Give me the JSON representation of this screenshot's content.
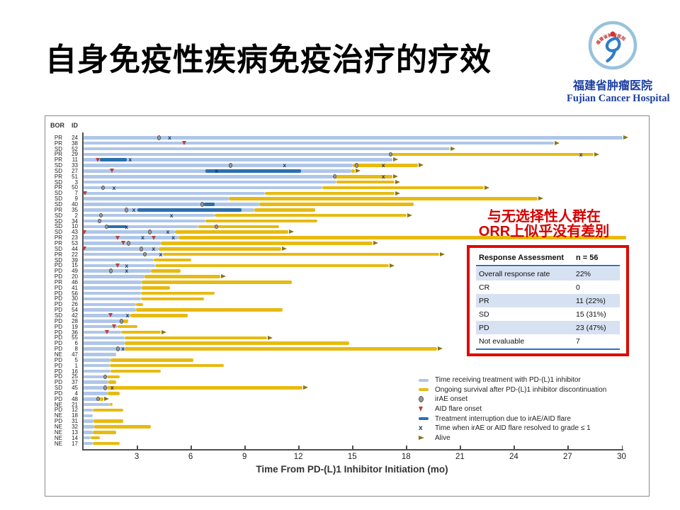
{
  "slide": {
    "title": "自身免疫性疾病免疫治疗的疗效"
  },
  "logo": {
    "cn": "福建省肿瘤医院",
    "en": "Fujian Cancer Hospital",
    "seal_text": "福建省肿瘤医院"
  },
  "annotation": {
    "line1": "与无选择性人群在",
    "line2": "ORR上似乎没有差别",
    "color": "#d40000"
  },
  "table": {
    "header": [
      "Response Assessment",
      "n = 56"
    ],
    "rows": [
      [
        "Overall response rate",
        "22%"
      ],
      [
        "CR",
        "0"
      ],
      [
        "PR",
        "11 (22%)"
      ],
      [
        "SD",
        "15 (31%)"
      ],
      [
        "PD",
        "23 (47%)"
      ],
      [
        "Not evaluable",
        "7"
      ]
    ]
  },
  "chart_data": {
    "type": "swimmer",
    "xlabel": "Time From PD-(L)1 Inhibitor Initiation (mo)",
    "x_ticks": [
      3,
      6,
      9,
      12,
      15,
      18,
      21,
      24,
      27,
      30
    ],
    "xlim": [
      0,
      30.5
    ],
    "col_headers": [
      "BOR",
      "ID"
    ],
    "grid": false,
    "legend_position": "bottom-right",
    "colors": {
      "treatment": "#aec6e8",
      "survival": "#e7ba11",
      "interruption": "#2c6fae",
      "irae": "#9a9a9a",
      "irae_border": "#555555",
      "flare": "#b5443a",
      "resolved": "#16365f",
      "alive_arrow": "#8a7616",
      "axis": "#4f4f4f"
    },
    "legend": [
      {
        "symbol": "bar-blue",
        "label": "Time receiving treatment with PD-(L)1 inhibitor"
      },
      {
        "symbol": "bar-gold",
        "label": "Ongoing survival after PD-(L)1 inhibitor discontinuation"
      },
      {
        "symbol": "circle",
        "label": "irAE onset"
      },
      {
        "symbol": "triangle",
        "label": "AID flare onset"
      },
      {
        "symbol": "bar-dark",
        "label": "Treatment interruption due to irAE/AID flare"
      },
      {
        "symbol": "cross",
        "label": "Time when irAE or AID flare resolved to grade ≤ 1"
      },
      {
        "symbol": "arrow",
        "label": "Alive"
      }
    ],
    "patients": [
      {
        "bor": "PR",
        "id": 24,
        "treat": 30.0,
        "total": 30.0,
        "alive": true,
        "irae": [
          4.2
        ],
        "resolved": [
          4.8
        ]
      },
      {
        "bor": "PR",
        "id": 38,
        "treat": 26.2,
        "total": 26.2,
        "alive": true,
        "flare": [
          5.6
        ]
      },
      {
        "bor": "SD",
        "id": 52,
        "treat": 20.4,
        "total": 20.4,
        "alive": true
      },
      {
        "bor": "PR",
        "id": 29,
        "treat": 17.1,
        "total": 28.4,
        "alive": true,
        "irae": [
          17.1
        ],
        "resolved": [
          27.7
        ]
      },
      {
        "bor": "PR",
        "id": 11,
        "treat": 17.2,
        "total": 17.2,
        "alive": true,
        "flare": [
          0.8
        ],
        "interrupt": [
          [
            0.9,
            2.4
          ]
        ],
        "resolved": [
          2.6
        ]
      },
      {
        "bor": "SD",
        "id": 33,
        "treat": 15.0,
        "total": 18.6,
        "alive": true,
        "irae": [
          8.2,
          15.2
        ],
        "resolved": [
          11.2,
          16.7
        ]
      },
      {
        "bor": "SD",
        "id": 27,
        "treat": 14.9,
        "total": 15.1,
        "alive": true,
        "flare": [
          1.6
        ],
        "interrupt": [
          [
            6.8,
            12.1
          ]
        ],
        "resolved": [
          7.4
        ]
      },
      {
        "bor": "PR",
        "id": 51,
        "treat": 13.9,
        "total": 17.2,
        "alive": true,
        "irae": [
          14.0
        ],
        "resolved": [
          16.7
        ]
      },
      {
        "bor": "SD",
        "id": 3,
        "treat": 14.1,
        "total": 17.3,
        "alive": true
      },
      {
        "bor": "PR",
        "id": 50,
        "treat": 13.3,
        "total": 22.3,
        "alive": true,
        "irae": [
          1.1
        ],
        "resolved": [
          1.7
        ]
      },
      {
        "bor": "SD",
        "id": 7,
        "treat": 10.1,
        "total": 17.3,
        "alive": true,
        "flare": [
          0.1
        ]
      },
      {
        "bor": "SD",
        "id": 9,
        "treat": 8.1,
        "total": 25.3,
        "alive": true
      },
      {
        "bor": "SD",
        "id": 40,
        "treat": 9.8,
        "total": 18.4,
        "alive": false,
        "irae": [
          6.6
        ],
        "interrupt": [
          [
            6.7,
            7.3
          ]
        ]
      },
      {
        "bor": "PR",
        "id": 35,
        "treat": 9.5,
        "total": 12.9,
        "alive": false,
        "irae": [
          2.4
        ],
        "resolved": [
          2.8
        ],
        "interrupt": [
          [
            3.0,
            8.8
          ]
        ]
      },
      {
        "bor": "SD",
        "id": 2,
        "treat": 7.3,
        "total": 18.0,
        "alive": true,
        "irae": [
          0.95
        ],
        "resolved": [
          4.9
        ]
      },
      {
        "bor": "SD",
        "id": 34,
        "treat": 6.8,
        "total": 13.0,
        "alive": false,
        "irae": [
          0.9
        ]
      },
      {
        "bor": "SD",
        "id": 10,
        "treat": 6.4,
        "total": 10.9,
        "alive": false,
        "irae": [
          1.3,
          7.4
        ],
        "interrupt": [
          [
            1.3,
            2.4
          ]
        ],
        "resolved": [
          2.4
        ]
      },
      {
        "bor": "SD",
        "id": 43,
        "treat": 5.1,
        "total": 11.4,
        "alive": true,
        "flare": [
          0.05
        ],
        "irae": [
          3.7
        ],
        "resolved": [
          4.7
        ]
      },
      {
        "bor": "PR",
        "id": 23,
        "treat": 5.3,
        "total": 30.2,
        "alive": false,
        "flare": [
          1.9,
          3.9
        ],
        "resolved": [
          3.3,
          5.0
        ]
      },
      {
        "bor": "PR",
        "id": 53,
        "treat": 4.3,
        "total": 16.1,
        "alive": true,
        "flare": [
          2.2
        ],
        "irae": [
          2.5
        ]
      },
      {
        "bor": "SD",
        "id": 44,
        "treat": 4.2,
        "total": 11.0,
        "alive": true,
        "flare": [
          0.05
        ],
        "irae": [
          3.2
        ],
        "resolved": [
          3.9
        ]
      },
      {
        "bor": "PR",
        "id": 22,
        "treat": 4.4,
        "total": 19.8,
        "alive": true,
        "irae": [
          3.4
        ],
        "resolved": [
          4.3
        ]
      },
      {
        "bor": "SD",
        "id": 39,
        "treat": 3.9,
        "total": 6.0,
        "alive": false
      },
      {
        "bor": "PD",
        "id": 15,
        "treat": 4.0,
        "total": 17.0,
        "alive": true,
        "flare": [
          1.9
        ],
        "resolved": [
          2.4
        ]
      },
      {
        "bor": "PD",
        "id": 49,
        "treat": 3.75,
        "total": 5.4,
        "alive": false,
        "irae": [
          1.5
        ],
        "resolved": [
          2.4
        ]
      },
      {
        "bor": "PD",
        "id": 20,
        "treat": 3.4,
        "total": 7.6,
        "alive": true
      },
      {
        "bor": "PR",
        "id": 46,
        "treat": 3.25,
        "total": 11.6,
        "alive": false
      },
      {
        "bor": "PD",
        "id": 41,
        "treat": 3.25,
        "total": 4.8,
        "alive": false
      },
      {
        "bor": "PD",
        "id": 56,
        "treat": 3.2,
        "total": 7.3,
        "alive": false
      },
      {
        "bor": "PD",
        "id": 30,
        "treat": 3.2,
        "total": 6.7,
        "alive": false
      },
      {
        "bor": "PD",
        "id": 26,
        "treat": 2.9,
        "total": 3.3,
        "alive": false
      },
      {
        "bor": "PD",
        "id": 54,
        "treat": 2.9,
        "total": 11.1,
        "alive": false
      },
      {
        "bor": "SD",
        "id": 42,
        "treat": 2.6,
        "total": 5.8,
        "alive": false,
        "flare": [
          1.5
        ],
        "resolved": [
          2.45
        ]
      },
      {
        "bor": "PD",
        "id": 28,
        "treat": 2.15,
        "total": 2.5,
        "alive": false,
        "irae": [
          2.1
        ]
      },
      {
        "bor": "PD",
        "id": 19,
        "treat": 1.9,
        "total": 3.0,
        "alive": false,
        "flare": [
          1.7
        ]
      },
      {
        "bor": "PD",
        "id": 36,
        "treat": 2.1,
        "total": 4.3,
        "alive": true,
        "flare": [
          1.3
        ]
      },
      {
        "bor": "PD",
        "id": 55,
        "treat": 2.3,
        "total": 10.2,
        "alive": true
      },
      {
        "bor": "PD",
        "id": 6,
        "treat": 2.3,
        "total": 14.8,
        "alive": false
      },
      {
        "bor": "PD",
        "id": 8,
        "treat": 2.3,
        "total": 19.7,
        "alive": true,
        "irae": [
          1.9
        ],
        "resolved": [
          2.2
        ]
      },
      {
        "bor": "NE",
        "id": 47,
        "treat": 1.8,
        "total": 1.8,
        "alive": false
      },
      {
        "bor": "PD",
        "id": 5,
        "treat": 1.5,
        "total": 6.1,
        "alive": false
      },
      {
        "bor": "PD",
        "id": 1,
        "treat": 1.45,
        "total": 7.8,
        "alive": false
      },
      {
        "bor": "PD",
        "id": 16,
        "treat": 1.5,
        "total": 4.3,
        "alive": false
      },
      {
        "bor": "PD",
        "id": 25,
        "treat": 1.3,
        "total": 2.0,
        "alive": false,
        "irae": [
          1.2
        ]
      },
      {
        "bor": "PD",
        "id": 37,
        "treat": 1.4,
        "total": 1.8,
        "alive": false
      },
      {
        "bor": "SD",
        "id": 45,
        "treat": 1.3,
        "total": 12.2,
        "alive": true,
        "irae": [
          1.2
        ],
        "resolved": [
          1.6
        ]
      },
      {
        "bor": "PD",
        "id": 4,
        "treat": 1.35,
        "total": 2.0,
        "alive": false
      },
      {
        "bor": "PD",
        "id": 48,
        "treat": 0.85,
        "total": 1.1,
        "alive": true,
        "irae": [
          0.8
        ]
      },
      {
        "bor": "NE",
        "id": 21,
        "treat": 1.45,
        "total": 1.6,
        "alive": false
      },
      {
        "bor": "PD",
        "id": 12,
        "treat": 0.5,
        "total": 2.2,
        "alive": false
      },
      {
        "bor": "NE",
        "id": 18,
        "treat": 0.5,
        "total": 0.5,
        "alive": false
      },
      {
        "bor": "PD",
        "id": 31,
        "treat": 0.55,
        "total": 2.2,
        "alive": false
      },
      {
        "bor": "NE",
        "id": 32,
        "treat": 0.6,
        "total": 3.75,
        "alive": false
      },
      {
        "bor": "NE",
        "id": 13,
        "treat": 0.5,
        "total": 1.8,
        "alive": false
      },
      {
        "bor": "NE",
        "id": 14,
        "treat": 0.4,
        "total": 0.9,
        "alive": false
      },
      {
        "bor": "NE",
        "id": 17,
        "treat": 0.5,
        "total": 2.0,
        "alive": false
      }
    ]
  }
}
